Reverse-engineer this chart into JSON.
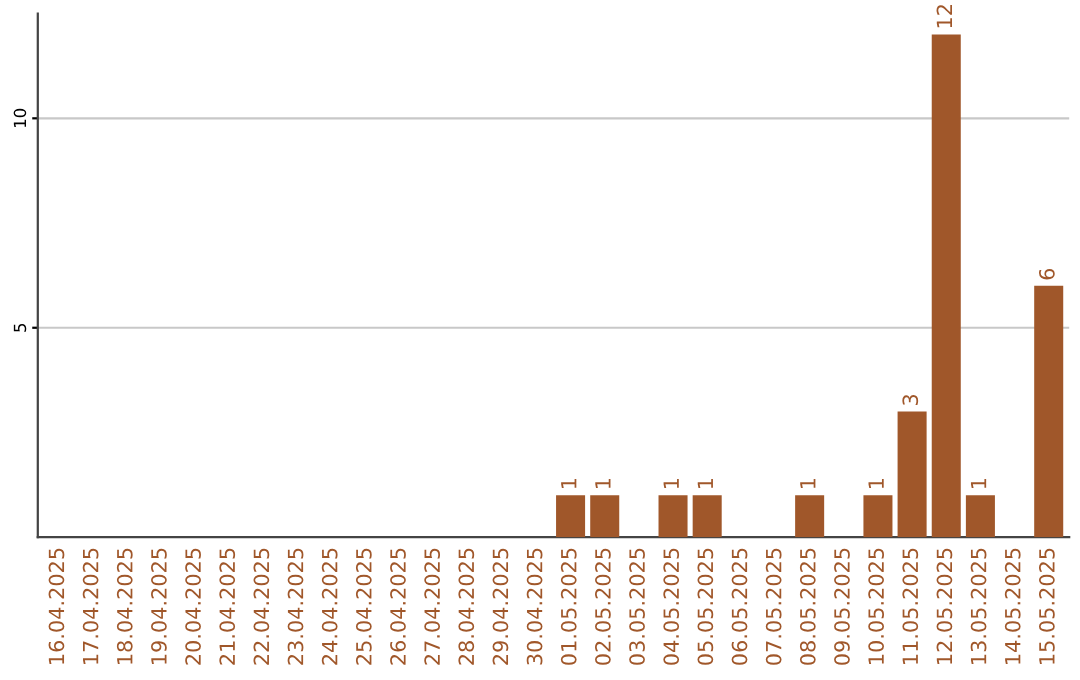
{
  "chart_data": {
    "type": "bar",
    "categories": [
      "16.04.2025",
      "17.04.2025",
      "18.04.2025",
      "19.04.2025",
      "20.04.2025",
      "21.04.2025",
      "22.04.2025",
      "23.04.2025",
      "24.04.2025",
      "25.04.2025",
      "26.04.2025",
      "27.04.2025",
      "28.04.2025",
      "29.04.2025",
      "30.04.2025",
      "01.05.2025",
      "02.05.2025",
      "03.05.2025",
      "04.05.2025",
      "05.05.2025",
      "06.05.2025",
      "07.05.2025",
      "08.05.2025",
      "09.05.2025",
      "10.05.2025",
      "11.05.2025",
      "12.05.2025",
      "13.05.2025",
      "14.05.2025",
      "15.05.2025"
    ],
    "values": [
      0,
      0,
      0,
      0,
      0,
      0,
      0,
      0,
      0,
      0,
      0,
      0,
      0,
      0,
      0,
      1,
      1,
      0,
      1,
      1,
      0,
      0,
      1,
      0,
      1,
      3,
      12,
      1,
      0,
      6
    ],
    "value_labels": [
      null,
      null,
      null,
      null,
      null,
      null,
      null,
      null,
      null,
      null,
      null,
      null,
      null,
      null,
      null,
      "1",
      "1",
      null,
      "1",
      "1",
      null,
      null,
      "1",
      null,
      "1",
      "3",
      "12",
      "1",
      null,
      "6"
    ],
    "color": "#a0572a",
    "ylim": [
      0,
      12.5
    ],
    "yticks": [
      5,
      10
    ],
    "grid": "y"
  }
}
